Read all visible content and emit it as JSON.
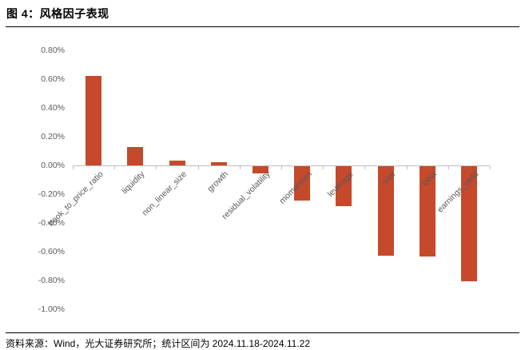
{
  "header": {
    "title": "图 4：风格因子表现"
  },
  "footer": {
    "source_note": "资料来源：Wind，光大证券研究所；统计区间为 2024.11.18-2024.11.22"
  },
  "chart_data": {
    "type": "bar",
    "title": "风格因子表现",
    "categories": [
      "book_to_price_ratio",
      "liquidity",
      "non_linear_size",
      "growth",
      "residual_volatility",
      "momentum",
      "leverage",
      "size",
      "beta",
      "earnings_yield"
    ],
    "values": [
      0.62,
      0.13,
      0.035,
      0.02,
      -0.05,
      -0.24,
      -0.28,
      -0.62,
      -0.63,
      -0.8
    ],
    "unit": "%",
    "xlabel": "",
    "ylabel": "",
    "ylim": [
      -1.0,
      0.8
    ],
    "ytick_step": 0.2,
    "ytick_labels": [
      "0.80%",
      "0.60%",
      "0.40%",
      "0.20%",
      "0.00%",
      "-0.20%",
      "-0.40%",
      "-0.60%",
      "-0.80%",
      "-1.00%"
    ],
    "grid": false,
    "legend_position": "none",
    "bar_color": "#C6492B",
    "axis_color": "#BFBFBF",
    "tick_label_color": "#595959"
  }
}
